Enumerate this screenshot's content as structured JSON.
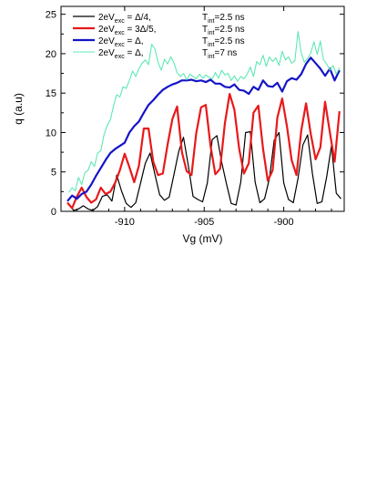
{
  "chart_data": {
    "type": "line",
    "xlabel": "Vg (mV)",
    "ylabel": "q (a.u)",
    "xlim": [
      -914,
      -896.2
    ],
    "ylim": [
      0,
      26
    ],
    "xticks": [
      "-910",
      "-905",
      "-900"
    ],
    "xtick_values": [
      -910,
      -905,
      -900
    ],
    "yticks": [
      "0",
      "5",
      "10",
      "15",
      "20",
      "25"
    ],
    "ytick_values": [
      0,
      5,
      10,
      15,
      20,
      25
    ],
    "grid": false,
    "legend_position": "top-left",
    "series": [
      {
        "name": "2eVexc = Δ/4, Tint=2.5 ns",
        "legend": {
          "main": "2eV",
          "sub": "exc",
          "rest": " = Δ/4,",
          "t_main": "T",
          "t_sub": "int",
          "t_rest": "=2.5 ns"
        },
        "color": "#000000",
        "width": 1.2,
        "x": [
          -913.5,
          -913.2,
          -912.9,
          -912.6,
          -912.3,
          -912.0,
          -911.7,
          -911.4,
          -911.1,
          -910.8,
          -910.5,
          -910.2,
          -909.9,
          -909.6,
          -909.3,
          -909.0,
          -908.7,
          -908.4,
          -908.1,
          -907.8,
          -907.5,
          -907.2,
          -906.9,
          -906.6,
          -906.3,
          -906.0,
          -905.7,
          -905.4,
          -905.1,
          -904.8,
          -904.5,
          -904.2,
          -903.9,
          -903.6,
          -903.3,
          -903.0,
          -902.7,
          -902.4,
          -902.1,
          -901.8,
          -901.5,
          -901.2,
          -900.9,
          -900.6,
          -900.3,
          -900.0,
          -899.7,
          -899.4,
          -899.1,
          -898.8,
          -898.5,
          -898.2,
          -897.9,
          -897.6,
          -897.3,
          -897.0,
          -896.7,
          -896.4
        ],
        "y": [
          0.9,
          0.1,
          0.3,
          0.7,
          0.3,
          0.1,
          0.6,
          1.9,
          2.1,
          1.3,
          4.6,
          2.6,
          1.0,
          0.5,
          1.1,
          3.6,
          6.1,
          7.4,
          4.7,
          2.1,
          1.4,
          1.8,
          4.7,
          7.6,
          9.4,
          5.8,
          1.9,
          1.5,
          1.2,
          3.6,
          9.1,
          9.6,
          6.2,
          3.5,
          1.0,
          0.8,
          3.7,
          10.0,
          10.1,
          3.7,
          1.1,
          1.6,
          4.2,
          9.0,
          10.0,
          3.6,
          1.5,
          1.1,
          4.2,
          8.4,
          9.7,
          4.8,
          1.0,
          1.2,
          4.4,
          8.3,
          2.3,
          1.6
        ]
      },
      {
        "name": "2eVexc = 3Δ/5, Tint=2.5 ns",
        "legend": {
          "main": "2eV",
          "sub": "exc",
          "rest": " = 3Δ/5,",
          "t_main": "T",
          "t_sub": "int",
          "t_rest": "=2.5 ns"
        },
        "color": "#e8191a",
        "width": 2.2,
        "x": [
          -913.6,
          -913.3,
          -913.0,
          -912.7,
          -912.4,
          -912.1,
          -911.8,
          -911.5,
          -911.2,
          -910.9,
          -910.6,
          -910.3,
          -910.0,
          -909.7,
          -909.4,
          -909.1,
          -908.8,
          -908.5,
          -908.2,
          -907.9,
          -907.6,
          -907.3,
          -907.0,
          -906.7,
          -906.4,
          -906.1,
          -905.8,
          -905.5,
          -905.2,
          -904.9,
          -904.6,
          -904.3,
          -904.0,
          -903.7,
          -903.4,
          -903.1,
          -902.8,
          -902.5,
          -902.2,
          -901.9,
          -901.6,
          -901.3,
          -901.0,
          -900.7,
          -900.4,
          -900.1,
          -899.8,
          -899.5,
          -899.2,
          -898.9,
          -898.6,
          -898.3,
          -898.0,
          -897.7,
          -897.4,
          -897.1,
          -896.8,
          -896.5
        ],
        "y": [
          1.1,
          0.4,
          1.9,
          3.0,
          1.8,
          1.1,
          1.5,
          3.0,
          2.2,
          2.5,
          3.6,
          5.2,
          7.3,
          5.6,
          3.7,
          5.8,
          10.5,
          10.5,
          6.3,
          4.6,
          4.8,
          8.5,
          11.7,
          13.3,
          7.5,
          5.1,
          4.6,
          9.9,
          13.2,
          13.5,
          8.3,
          4.7,
          5.4,
          11.2,
          14.9,
          12.9,
          7.9,
          4.8,
          6.1,
          12.5,
          13.4,
          7.9,
          3.9,
          5.2,
          11.9,
          14.3,
          10.8,
          6.5,
          4.6,
          10.2,
          13.7,
          9.8,
          6.6,
          8.1,
          13.9,
          10.0,
          6.3,
          12.7
        ]
      },
      {
        "name": "2eVexc = Δ, Tint=2.5 ns",
        "legend": {
          "main": "2eV",
          "sub": "exc",
          "rest": " = Δ,",
          "t_main": "T",
          "t_sub": "int",
          "t_rest": "=2.5 ns"
        },
        "color": "#1414c8",
        "width": 2.2,
        "x": [
          -913.6,
          -913.3,
          -913.0,
          -912.7,
          -912.4,
          -912.1,
          -911.8,
          -911.5,
          -911.2,
          -910.9,
          -910.6,
          -910.3,
          -910.0,
          -909.7,
          -909.4,
          -909.1,
          -908.8,
          -908.5,
          -908.2,
          -907.9,
          -907.6,
          -907.3,
          -907.0,
          -906.7,
          -906.4,
          -906.1,
          -905.8,
          -905.5,
          -905.2,
          -904.9,
          -904.6,
          -904.3,
          -904.0,
          -903.7,
          -903.4,
          -903.1,
          -902.8,
          -902.5,
          -902.2,
          -901.9,
          -901.6,
          -901.3,
          -901.0,
          -900.7,
          -900.4,
          -900.1,
          -899.8,
          -899.5,
          -899.2,
          -898.9,
          -898.6,
          -898.3,
          -898.0,
          -897.7,
          -897.4,
          -897.1,
          -896.8,
          -896.5
        ],
        "y": [
          1.3,
          2.0,
          1.6,
          2.2,
          2.5,
          3.4,
          4.5,
          5.5,
          6.5,
          7.4,
          7.9,
          8.3,
          8.7,
          10.0,
          10.8,
          11.4,
          12.5,
          13.5,
          14.1,
          14.8,
          15.4,
          15.8,
          16.1,
          16.3,
          16.6,
          16.6,
          16.7,
          16.5,
          16.6,
          16.4,
          16.7,
          16.2,
          16.2,
          15.8,
          15.7,
          16.1,
          15.4,
          15.3,
          14.9,
          15.8,
          15.4,
          16.6,
          15.9,
          15.8,
          16.3,
          15.2,
          16.5,
          16.9,
          16.7,
          17.4,
          18.7,
          19.5,
          18.8,
          18.1,
          17.2,
          18.1,
          16.6,
          17.9
        ]
      },
      {
        "name": "2eVexc = Δ, Tint=7 ns",
        "legend": {
          "main": "2eV",
          "sub": "exc",
          "rest": " = Δ,",
          "t_main": "T",
          "t_sub": "int",
          "t_rest": "=7 ns"
        },
        "color": "#5fe8b4",
        "width": 1.1,
        "x": [
          -913.5,
          -913.3,
          -913.1,
          -912.9,
          -912.7,
          -912.5,
          -912.3,
          -912.1,
          -911.9,
          -911.7,
          -911.5,
          -911.3,
          -911.1,
          -910.9,
          -910.7,
          -910.5,
          -910.3,
          -910.1,
          -909.9,
          -909.7,
          -909.5,
          -909.3,
          -909.1,
          -908.9,
          -908.7,
          -908.5,
          -908.3,
          -908.1,
          -907.9,
          -907.7,
          -907.5,
          -907.3,
          -907.1,
          -906.9,
          -906.7,
          -906.5,
          -906.3,
          -906.1,
          -905.9,
          -905.7,
          -905.5,
          -905.3,
          -905.1,
          -904.9,
          -904.7,
          -904.5,
          -904.3,
          -904.1,
          -903.9,
          -903.7,
          -903.5,
          -903.3,
          -903.1,
          -902.9,
          -902.7,
          -902.5,
          -902.3,
          -902.1,
          -901.9,
          -901.7,
          -901.5,
          -901.3,
          -901.1,
          -900.9,
          -900.7,
          -900.5,
          -900.3,
          -900.1,
          -899.9,
          -899.7,
          -899.5,
          -899.3,
          -899.1,
          -898.9,
          -898.7,
          -898.5,
          -898.3,
          -898.1,
          -897.9,
          -897.7,
          -897.5,
          -897.3,
          -897.1,
          -896.9,
          -896.7,
          -896.5
        ],
        "y": [
          2.4,
          3.0,
          2.6,
          4.3,
          3.4,
          4.9,
          5.2,
          6.3,
          5.7,
          7.4,
          7.7,
          9.7,
          10.9,
          11.6,
          13.4,
          14.8,
          14.5,
          15.8,
          15.6,
          16.6,
          17.8,
          17.1,
          18.1,
          18.8,
          19.2,
          18.6,
          21.2,
          20.6,
          18.9,
          17.9,
          19.3,
          18.7,
          19.6,
          18.8,
          17.6,
          17.1,
          17.5,
          16.7,
          17.4,
          17.1,
          16.8,
          17.4,
          16.9,
          17.3,
          17.0,
          16.8,
          17.6,
          16.9,
          17.9,
          17.3,
          17.5,
          16.6,
          17.2,
          16.5,
          17.1,
          16.8,
          17.4,
          18.3,
          17.1,
          19.0,
          18.6,
          19.8,
          18.4,
          19.6,
          19.0,
          19.5,
          18.5,
          20.3,
          19.2,
          19.6,
          18.8,
          19.1,
          22.8,
          20.1,
          18.9,
          19.4,
          20.1,
          21.5,
          19.9,
          21.6,
          19.2,
          18.7,
          17.9,
          18.5,
          17.4,
          18.2
        ]
      }
    ]
  }
}
